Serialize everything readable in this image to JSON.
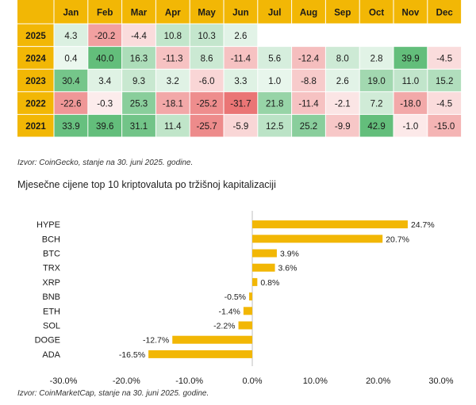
{
  "chart_data": [
    {
      "type": "heatmap",
      "columns": [
        "Jan",
        "Feb",
        "Mar",
        "Apr",
        "May",
        "Jun",
        "Jul",
        "Aug",
        "Sep",
        "Oct",
        "Nov",
        "Dec"
      ],
      "rows": [
        {
          "year": "2025",
          "values": [
            4.3,
            -20.2,
            -4.4,
            10.8,
            10.3,
            2.6,
            null,
            null,
            null,
            null,
            null,
            null
          ]
        },
        {
          "year": "2024",
          "values": [
            0.4,
            40.0,
            16.3,
            -11.3,
            8.6,
            -11.4,
            5.6,
            -12.4,
            8.0,
            2.8,
            39.9,
            -4.5
          ]
        },
        {
          "year": "2023",
          "values": [
            30.4,
            3.4,
            9.3,
            3.2,
            -6.0,
            3.3,
            1.0,
            -8.8,
            2.6,
            19.0,
            11.0,
            15.2
          ]
        },
        {
          "year": "2022",
          "values": [
            -22.6,
            -0.3,
            25.3,
            -18.1,
            -25.2,
            -31.7,
            21.8,
            -11.4,
            -2.1,
            7.2,
            -18.0,
            -4.5
          ]
        },
        {
          "year": "2021",
          "values": [
            33.9,
            39.6,
            31.1,
            11.4,
            -25.7,
            -5.9,
            12.5,
            25.2,
            -9.9,
            42.9,
            -1.0,
            -15.0
          ]
        }
      ],
      "header_color": "#f2b705"
    },
    {
      "type": "bar",
      "orientation": "horizontal",
      "title": "Mjesečne cijene top 10 kriptovaluta po tržišnoj kapitalizaciji",
      "categories": [
        "HYPE",
        "BCH",
        "BTC",
        "TRX",
        "XRP",
        "BNB",
        "ETH",
        "SOL",
        "DOGE",
        "ADA"
      ],
      "values": [
        24.7,
        20.7,
        3.9,
        3.6,
        0.8,
        -0.5,
        -1.4,
        -2.2,
        -12.7,
        -16.5
      ],
      "value_labels": [
        "24.7%",
        "20.7%",
        "3.9%",
        "3.6%",
        "0.8%",
        "-0.5%",
        "-1.4%",
        "-2.2%",
        "-12.7%",
        "-16.5%"
      ],
      "xlim": [
        -30,
        30
      ],
      "x_ticks": [
        -30,
        -20,
        -10,
        0,
        10,
        20,
        30
      ],
      "x_tick_labels": [
        "-30.0%",
        "-20.0%",
        "-10.0%",
        "0.0%",
        "10.0%",
        "20.0%",
        "30.0%"
      ],
      "bar_color": "#f2b705",
      "grid": false
    }
  ],
  "sources": {
    "heatmap": "Izvor: CoinGecko, stanje na 30. juni 2025. godine.",
    "bars": "Izvor: CoinMarketCap, stanje na 30. juni 2025. godine."
  }
}
